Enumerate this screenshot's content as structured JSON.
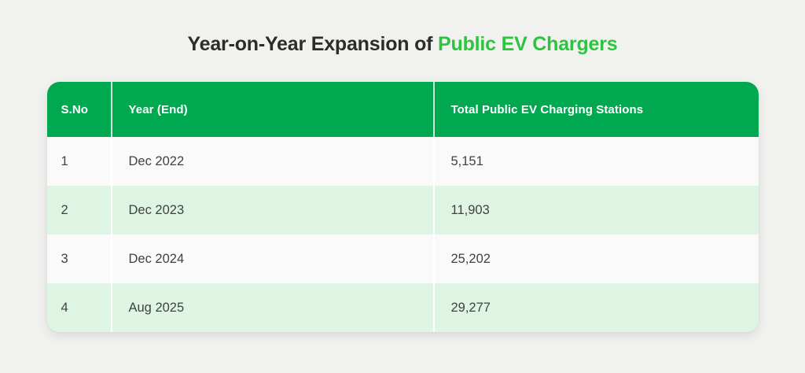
{
  "title": {
    "prefix": "Year-on-Year Expansion of ",
    "highlight": "Public EV Chargers"
  },
  "colors": {
    "header_green": "#00a84f",
    "row_green": "#def5e3",
    "row_white": "#fafafa",
    "title_dark": "#2b2d2a",
    "title_green": "#2dc43e",
    "body_text": "#3f4240",
    "page_bg": "#f1f1ef"
  },
  "table": {
    "columns": [
      "S.No",
      "Year (End)",
      "Total Public EV Charging Stations"
    ],
    "rows": [
      {
        "sno": "1",
        "year": "Dec 2022",
        "total": "5,151"
      },
      {
        "sno": "2",
        "year": "Dec 2023",
        "total": "11,903"
      },
      {
        "sno": "3",
        "year": "Dec 2024",
        "total": "25,202"
      },
      {
        "sno": "4",
        "year": "Aug 2025",
        "total": "29,277"
      }
    ]
  },
  "chart_data": {
    "type": "table",
    "title": "Year-on-Year Expansion of Public EV Chargers",
    "columns": [
      "S.No",
      "Year (End)",
      "Total Public EV Charging Stations"
    ],
    "rows": [
      [
        "1",
        "Dec 2022",
        "5,151"
      ],
      [
        "2",
        "Dec 2023",
        "11,903"
      ],
      [
        "3",
        "Dec 2024",
        "25,202"
      ],
      [
        "4",
        "Aug 2025",
        "29,277"
      ]
    ],
    "x": [
      "Dec 2022",
      "Dec 2023",
      "Dec 2024",
      "Aug 2025"
    ],
    "values": [
      5151,
      11903,
      25202,
      29277
    ],
    "ylabel": "Total Public EV Charging Stations"
  }
}
